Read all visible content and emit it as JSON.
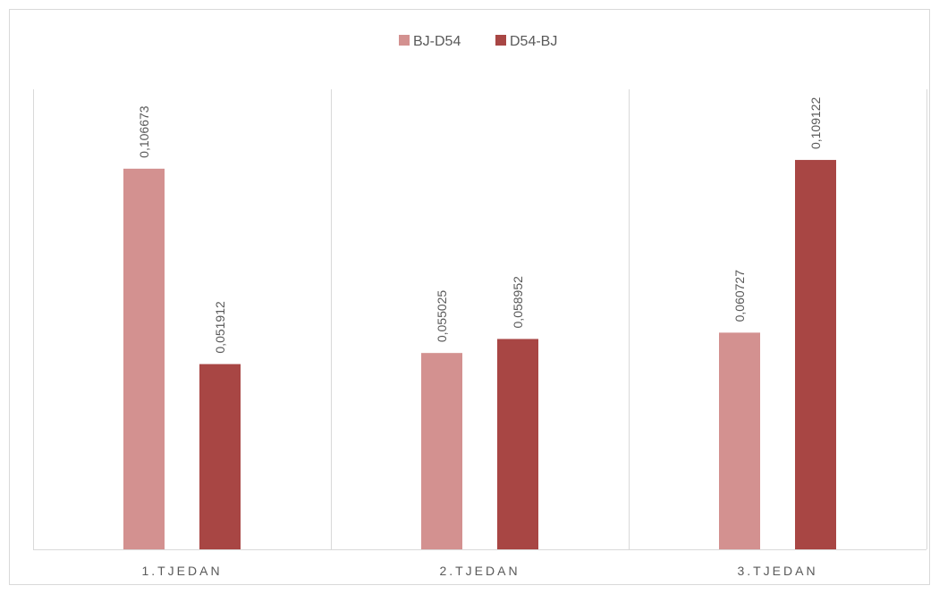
{
  "chart_data": {
    "type": "bar",
    "categories": [
      "1.TJEDAN",
      "2.TJEDAN",
      "3.TJEDAN"
    ],
    "series": [
      {
        "name": "BJ-D54",
        "color": "#d39190",
        "values": [
          0.106673,
          0.055025,
          0.060727
        ],
        "labels": [
          "0,106673",
          "0,055025",
          "0,060727"
        ]
      },
      {
        "name": "D54-BJ",
        "color": "#a84644",
        "values": [
          0.051912,
          0.058952,
          0.109122
        ],
        "labels": [
          "0,051912",
          "0,058952",
          "0,109122"
        ]
      }
    ],
    "ylim": [
      0,
      0.125
    ],
    "legend_position": "top",
    "grid": "vertical category separators"
  }
}
